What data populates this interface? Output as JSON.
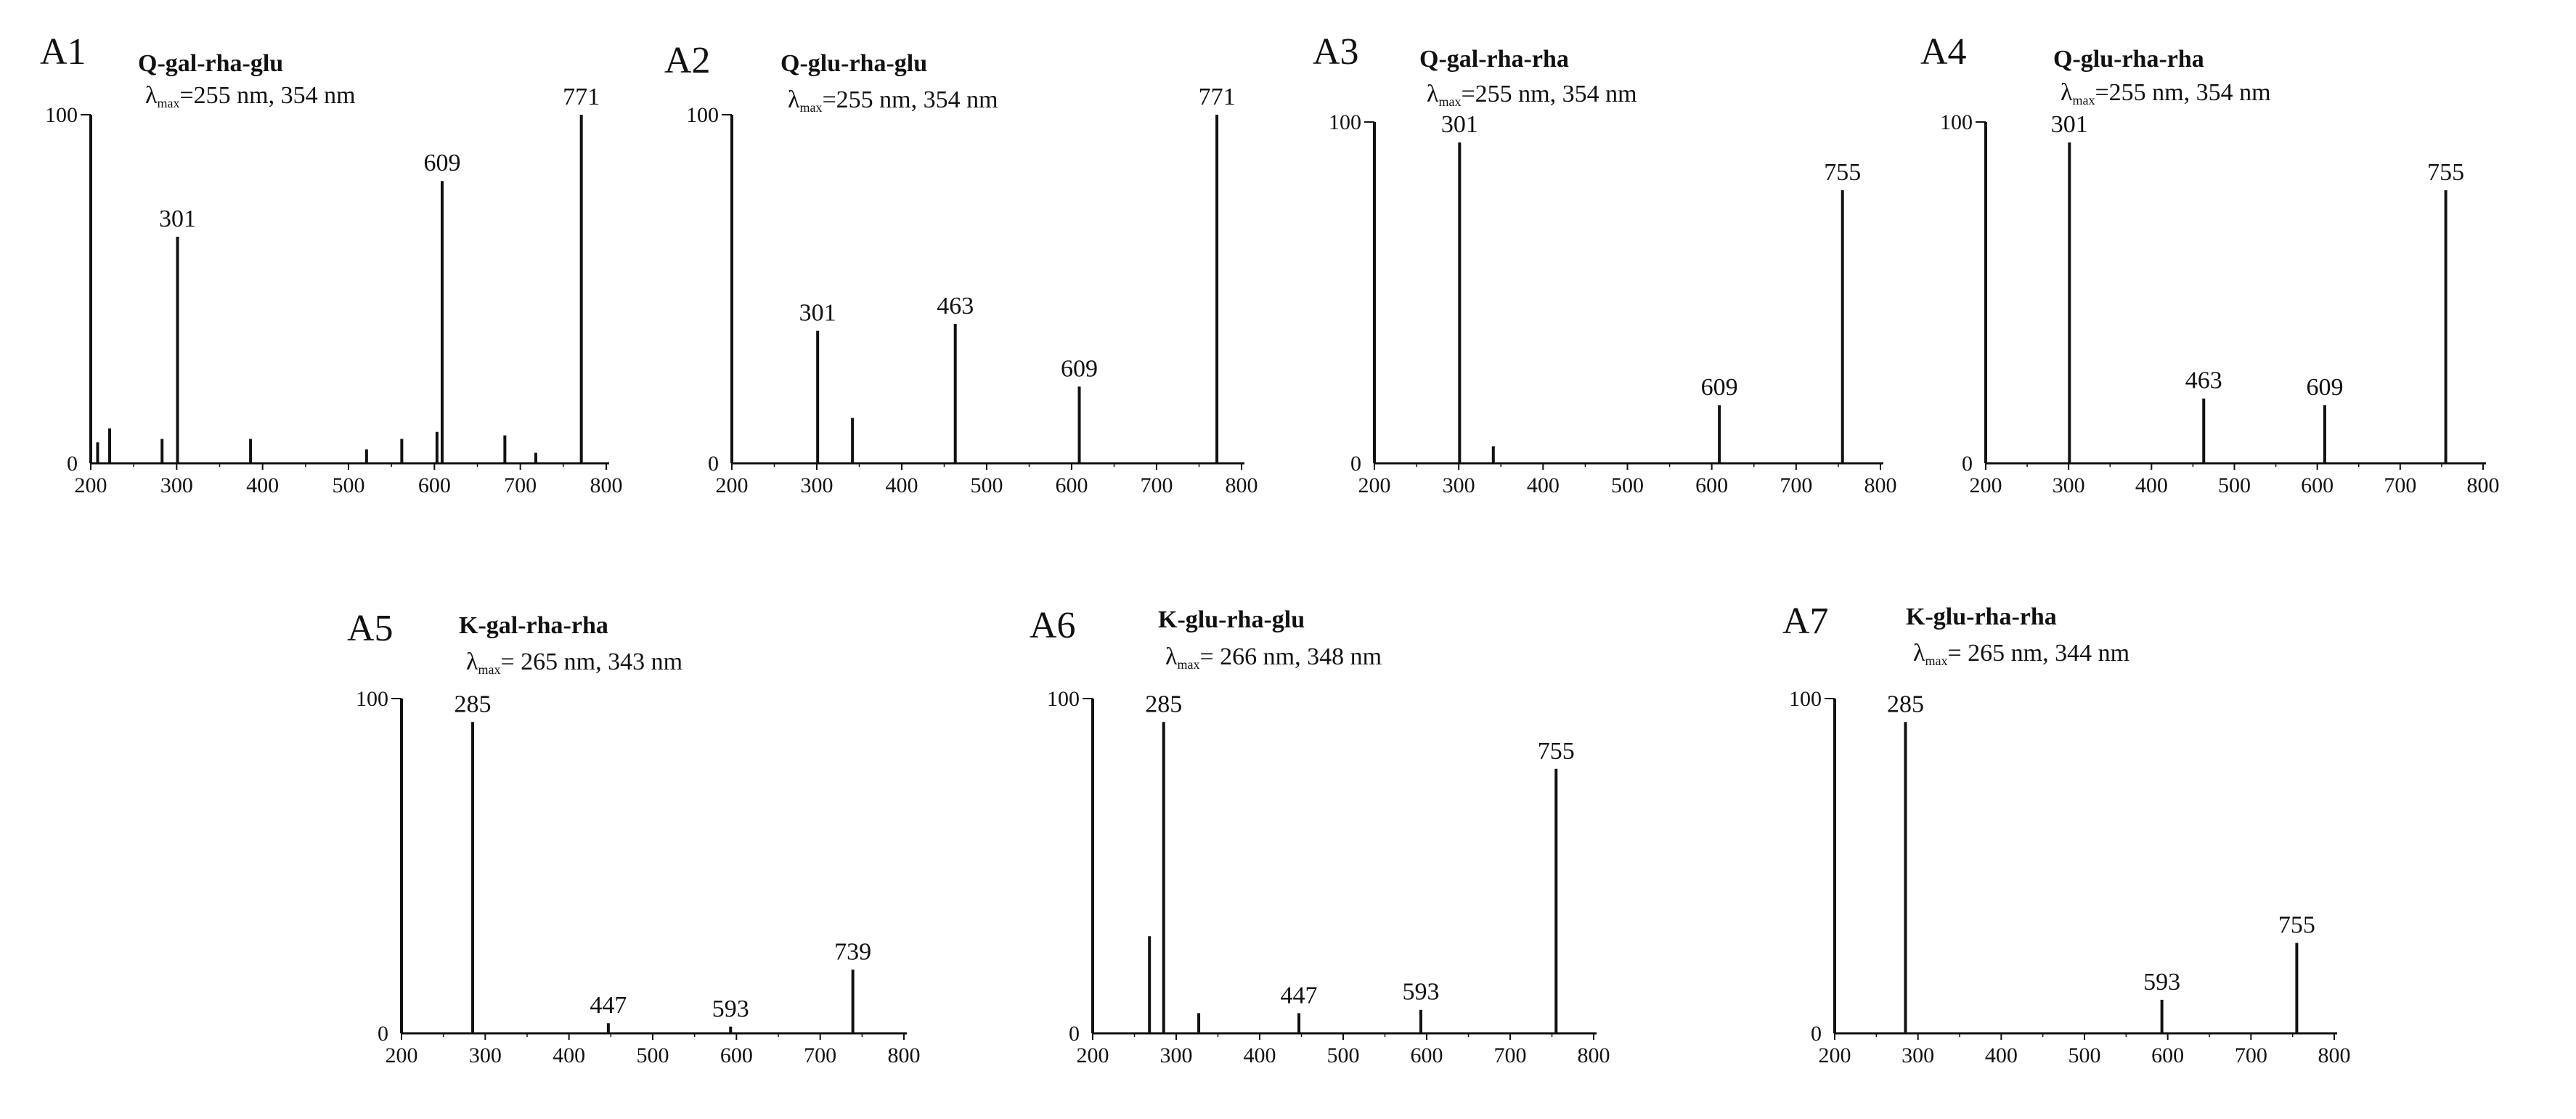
{
  "chart_data": [
    {
      "type": "bar",
      "label": "A1",
      "title": "Q-gal-rha-glu",
      "lambda_max": "=255 nm, 354 nm",
      "xlim": [
        200,
        800
      ],
      "xticks": [
        200,
        300,
        400,
        500,
        600,
        700,
        800
      ],
      "ylim": [
        0,
        100
      ],
      "yticks": [
        0,
        100
      ],
      "peaks": [
        {
          "x": 200,
          "y": 100
        },
        {
          "x": 208,
          "y": 6,
          "label": ""
        },
        {
          "x": 222,
          "y": 10,
          "label": ""
        },
        {
          "x": 283,
          "y": 7,
          "label": ""
        },
        {
          "x": 301,
          "y": 65,
          "label": "301"
        },
        {
          "x": 386,
          "y": 7,
          "label": ""
        },
        {
          "x": 521,
          "y": 4,
          "label": ""
        },
        {
          "x": 562,
          "y": 7,
          "label": ""
        },
        {
          "x": 603,
          "y": 9,
          "label": ""
        },
        {
          "x": 609,
          "y": 81,
          "label": "609"
        },
        {
          "x": 682,
          "y": 8,
          "label": ""
        },
        {
          "x": 718,
          "y": 3,
          "label": ""
        },
        {
          "x": 771,
          "y": 100,
          "label": "771"
        }
      ]
    },
    {
      "type": "bar",
      "label": "A2",
      "title": "Q-glu-rha-glu",
      "lambda_max": "=255 nm, 354 nm",
      "xlim": [
        200,
        800
      ],
      "xticks": [
        200,
        300,
        400,
        500,
        600,
        700,
        800
      ],
      "ylim": [
        0,
        100
      ],
      "yticks": [
        0,
        100
      ],
      "peaks": [
        {
          "x": 200,
          "y": 100
        },
        {
          "x": 301,
          "y": 38,
          "label": "301"
        },
        {
          "x": 342,
          "y": 13,
          "label": ""
        },
        {
          "x": 463,
          "y": 40,
          "label": "463"
        },
        {
          "x": 609,
          "y": 22,
          "label": "609"
        },
        {
          "x": 771,
          "y": 100,
          "label": "771"
        }
      ]
    },
    {
      "type": "bar",
      "label": "A3",
      "title": "Q-gal-rha-rha",
      "lambda_max": "=255 nm, 354 nm",
      "xlim": [
        200,
        800
      ],
      "xticks": [
        200,
        300,
        400,
        500,
        600,
        700,
        800
      ],
      "ylim": [
        0,
        100
      ],
      "yticks": [
        0,
        100
      ],
      "peaks": [
        {
          "x": 200,
          "y": 100
        },
        {
          "x": 301,
          "y": 94,
          "label": "301"
        },
        {
          "x": 341,
          "y": 5,
          "label": ""
        },
        {
          "x": 609,
          "y": 17,
          "label": "609"
        },
        {
          "x": 755,
          "y": 80,
          "label": "755"
        }
      ]
    },
    {
      "type": "bar",
      "label": "A4",
      "title": "Q-glu-rha-rha",
      "lambda_max": "=255 nm, 354 nm",
      "xlim": [
        200,
        800
      ],
      "xticks": [
        200,
        300,
        400,
        500,
        600,
        700,
        800
      ],
      "ylim": [
        0,
        100
      ],
      "yticks": [
        0,
        100
      ],
      "peaks": [
        {
          "x": 200,
          "y": 100
        },
        {
          "x": 301,
          "y": 94,
          "label": "301"
        },
        {
          "x": 463,
          "y": 19,
          "label": "463"
        },
        {
          "x": 609,
          "y": 17,
          "label": "609"
        },
        {
          "x": 755,
          "y": 80,
          "label": "755"
        }
      ]
    },
    {
      "type": "bar",
      "label": "A5",
      "title": "K-gal-rha-rha",
      "lambda_max": "= 265 nm, 343 nm",
      "xlim": [
        200,
        800
      ],
      "xticks": [
        200,
        300,
        400,
        500,
        600,
        700,
        800
      ],
      "ylim": [
        0,
        100
      ],
      "yticks": [
        0,
        100
      ],
      "peaks": [
        {
          "x": 200,
          "y": 100
        },
        {
          "x": 285,
          "y": 93,
          "label": "285"
        },
        {
          "x": 447,
          "y": 3,
          "label": "447"
        },
        {
          "x": 593,
          "y": 2,
          "label": "593"
        },
        {
          "x": 739,
          "y": 19,
          "label": "739"
        }
      ]
    },
    {
      "type": "bar",
      "label": "A6",
      "title": "K-glu-rha-glu",
      "lambda_max": "= 266 nm, 348 nm",
      "xlim": [
        200,
        800
      ],
      "xticks": [
        200,
        300,
        400,
        500,
        600,
        700,
        800
      ],
      "ylim": [
        0,
        100
      ],
      "yticks": [
        0,
        100
      ],
      "peaks": [
        {
          "x": 200,
          "y": 100
        },
        {
          "x": 268,
          "y": 29,
          "label": ""
        },
        {
          "x": 285,
          "y": 93,
          "label": "285"
        },
        {
          "x": 327,
          "y": 6,
          "label": ""
        },
        {
          "x": 447,
          "y": 6,
          "label": "447"
        },
        {
          "x": 593,
          "y": 7,
          "label": "593"
        },
        {
          "x": 755,
          "y": 79,
          "label": "755"
        }
      ]
    },
    {
      "type": "bar",
      "label": "A7",
      "title": "K-glu-rha-rha",
      "lambda_max": "= 265 nm, 344 nm",
      "xlim": [
        200,
        800
      ],
      "xticks": [
        200,
        300,
        400,
        500,
        600,
        700,
        800
      ],
      "ylim": [
        0,
        100
      ],
      "yticks": [
        0,
        100
      ],
      "peaks": [
        {
          "x": 200,
          "y": 100
        },
        {
          "x": 285,
          "y": 93,
          "label": "285"
        },
        {
          "x": 593,
          "y": 10,
          "label": "593"
        },
        {
          "x": 755,
          "y": 27,
          "label": "755"
        }
      ]
    }
  ],
  "lambda_symbol": "λ",
  "lambda_subscript": "max"
}
